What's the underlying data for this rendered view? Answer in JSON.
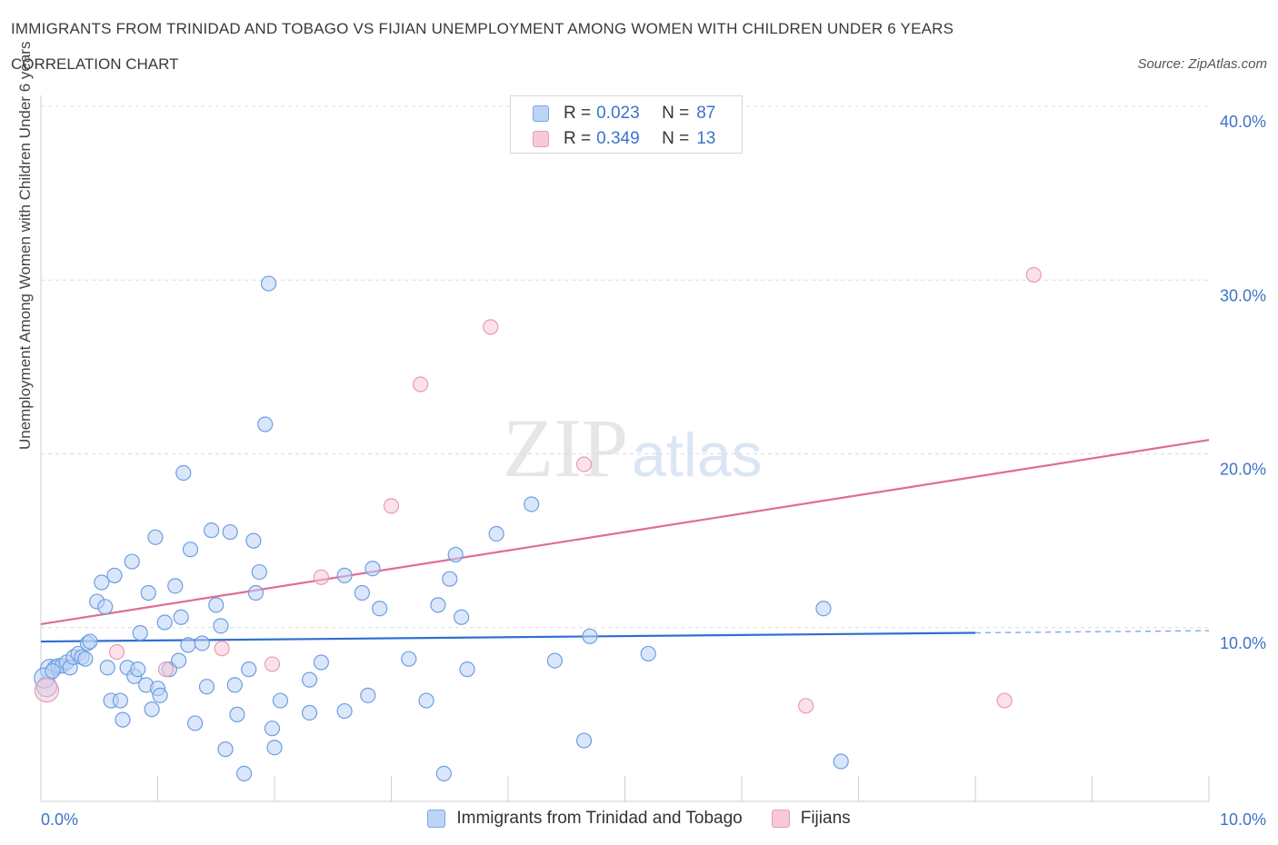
{
  "header": {
    "title": "IMMIGRANTS FROM TRINIDAD AND TOBAGO VS FIJIAN UNEMPLOYMENT AMONG WOMEN WITH CHILDREN UNDER 6 YEARS",
    "subtitle": "CORRELATION CHART",
    "source": "Source: ZipAtlas.com"
  },
  "watermark": {
    "zip": "ZIP",
    "atlas": "atlas"
  },
  "legend": {
    "r_label": "R =",
    "n_label": "N =",
    "rows": [
      {
        "r": "0.023",
        "n": "87"
      },
      {
        "r": "0.349",
        "n": "13"
      }
    ]
  },
  "colors": {
    "blue_fill": "#bcd4f6",
    "blue_stroke": "#6f9ee0",
    "blue_line": "#2f6fd0",
    "pink_fill": "#f8c9d8",
    "pink_stroke": "#e99bb5",
    "pink_line": "#e06c97",
    "grid": "#dcdcdc",
    "tick_label": "#3b74c9"
  },
  "chart_data": {
    "type": "scatter",
    "title": "IMMIGRANTS FROM TRINIDAD AND TOBAGO VS FIJIAN UNEMPLOYMENT AMONG WOMEN WITH CHILDREN UNDER 6 YEARS",
    "ylabel": "Unemployment Among Women with Children Under 6 years",
    "xlim": [
      0,
      10
    ],
    "ylim": [
      0,
      40
    ],
    "x_tick_labels": [
      "0.0%",
      "10.0%"
    ],
    "x_tick_values": [
      0,
      10
    ],
    "y_tick_labels": [
      "10.0%",
      "20.0%",
      "30.0%",
      "40.0%"
    ],
    "y_tick_values": [
      10,
      20,
      30,
      40
    ],
    "grid": true,
    "legend_position": "top-center",
    "series": [
      {
        "name": "Immigrants from Trinidad and Tobago",
        "color": "#6f9ee0",
        "points": [
          [
            0.05,
            6.6
          ],
          [
            0.08,
            7.6
          ],
          [
            0.12,
            7.7
          ],
          [
            0.15,
            7.8
          ],
          [
            0.18,
            7.8
          ],
          [
            0.22,
            8.0
          ],
          [
            0.25,
            7.7
          ],
          [
            0.28,
            8.3
          ],
          [
            0.32,
            8.5
          ],
          [
            0.35,
            8.3
          ],
          [
            0.38,
            8.2
          ],
          [
            0.4,
            9.1
          ],
          [
            0.42,
            9.2
          ],
          [
            0.48,
            11.5
          ],
          [
            0.52,
            12.6
          ],
          [
            0.55,
            11.2
          ],
          [
            0.57,
            7.7
          ],
          [
            0.6,
            5.8
          ],
          [
            0.63,
            13.0
          ],
          [
            0.68,
            5.8
          ],
          [
            0.7,
            4.7
          ],
          [
            0.74,
            7.7
          ],
          [
            0.78,
            13.8
          ],
          [
            0.8,
            7.2
          ],
          [
            0.83,
            7.6
          ],
          [
            0.85,
            9.7
          ],
          [
            0.9,
            6.7
          ],
          [
            0.92,
            12.0
          ],
          [
            0.95,
            5.3
          ],
          [
            0.98,
            15.2
          ],
          [
            1.0,
            6.5
          ],
          [
            1.02,
            6.1
          ],
          [
            1.06,
            10.3
          ],
          [
            1.1,
            7.6
          ],
          [
            1.15,
            12.4
          ],
          [
            1.18,
            8.1
          ],
          [
            1.2,
            10.6
          ],
          [
            1.22,
            18.9
          ],
          [
            1.26,
            9.0
          ],
          [
            1.28,
            14.5
          ],
          [
            1.32,
            4.5
          ],
          [
            1.38,
            9.1
          ],
          [
            1.42,
            6.6
          ],
          [
            1.46,
            15.6
          ],
          [
            1.5,
            11.3
          ],
          [
            1.54,
            10.1
          ],
          [
            1.58,
            3.0
          ],
          [
            1.62,
            15.5
          ],
          [
            1.66,
            6.7
          ],
          [
            1.68,
            5.0
          ],
          [
            1.74,
            1.6
          ],
          [
            1.78,
            7.6
          ],
          [
            1.82,
            15.0
          ],
          [
            1.84,
            12.0
          ],
          [
            1.87,
            13.2
          ],
          [
            1.92,
            21.7
          ],
          [
            1.95,
            29.8
          ],
          [
            1.98,
            4.2
          ],
          [
            2.0,
            3.1
          ],
          [
            2.05,
            5.8
          ],
          [
            2.3,
            7.0
          ],
          [
            2.3,
            5.1
          ],
          [
            2.4,
            8.0
          ],
          [
            2.6,
            13.0
          ],
          [
            2.6,
            5.2
          ],
          [
            2.75,
            12.0
          ],
          [
            2.8,
            6.1
          ],
          [
            2.84,
            13.4
          ],
          [
            2.9,
            11.1
          ],
          [
            3.15,
            8.2
          ],
          [
            3.3,
            5.8
          ],
          [
            3.4,
            11.3
          ],
          [
            3.45,
            1.6
          ],
          [
            3.5,
            12.8
          ],
          [
            3.55,
            14.2
          ],
          [
            3.6,
            10.6
          ],
          [
            3.65,
            7.6
          ],
          [
            3.9,
            15.4
          ],
          [
            4.2,
            17.1
          ],
          [
            4.4,
            8.1
          ],
          [
            4.65,
            3.5
          ],
          [
            4.7,
            9.5
          ],
          [
            5.2,
            8.5
          ],
          [
            6.7,
            11.1
          ],
          [
            6.85,
            2.3
          ],
          [
            0.03,
            7.1
          ],
          [
            0.1,
            7.5
          ]
        ]
      },
      {
        "name": "Fijians",
        "color": "#e99bb5",
        "points": [
          [
            0.05,
            6.4
          ],
          [
            0.65,
            8.6
          ],
          [
            1.07,
            7.6
          ],
          [
            1.55,
            8.8
          ],
          [
            1.98,
            7.9
          ],
          [
            2.4,
            12.9
          ],
          [
            3.0,
            17.0
          ],
          [
            3.25,
            24.0
          ],
          [
            3.85,
            27.3
          ],
          [
            4.65,
            19.4
          ],
          [
            6.55,
            5.5
          ],
          [
            8.25,
            5.8
          ],
          [
            8.5,
            30.3
          ]
        ]
      }
    ],
    "trendlines": [
      {
        "series": "Immigrants from Trinidad and Tobago",
        "x": [
          0,
          8.0
        ],
        "y": [
          9.2,
          9.7
        ],
        "dashed_extension": [
          8.0,
          10.0
        ]
      },
      {
        "series": "Fijians",
        "x": [
          0,
          10
        ],
        "y": [
          10.2,
          20.8
        ]
      }
    ]
  }
}
